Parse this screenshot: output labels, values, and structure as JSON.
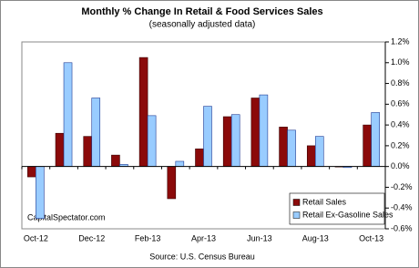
{
  "chart_data": {
    "type": "bar",
    "title": "Monthly % Change In Retail & Food Services Sales",
    "subtitle": "(seasonally adjusted data)",
    "source": "Source: U.S. Census Bureau",
    "watermark": "CapitalSpectator.com",
    "categories": [
      "Oct-12",
      null,
      "Dec-12",
      null,
      "Feb-13",
      null,
      "Apr-13",
      null,
      "Jun-13",
      null,
      "Aug-13",
      null,
      "Oct-13"
    ],
    "series": [
      {
        "name": "Retail Sales",
        "color": "#8b0a0a",
        "values": [
          -0.1,
          0.32,
          0.29,
          0.11,
          1.05,
          -0.31,
          0.17,
          0.48,
          0.66,
          0.38,
          0.2,
          0.0,
          0.4
        ]
      },
      {
        "name": "Retail Ex-Gasoline Sales",
        "color": "#99ccff",
        "values": [
          -0.5,
          1.0,
          0.66,
          0.02,
          0.49,
          0.05,
          0.58,
          0.5,
          0.69,
          0.35,
          0.29,
          -0.01,
          0.52
        ]
      }
    ],
    "ylim": [
      -0.6,
      1.2
    ],
    "yticks": [
      {
        "value": -0.6,
        "label": "-0.6%"
      },
      {
        "value": -0.4,
        "label": "-0.4%"
      },
      {
        "value": -0.2,
        "label": "-0.2%"
      },
      {
        "value": 0,
        "label": "0.0%"
      },
      {
        "value": 0.2,
        "label": "0.2%"
      },
      {
        "value": 0.4,
        "label": "0.4%"
      },
      {
        "value": 0.6,
        "label": "0.6%"
      },
      {
        "value": 0.8,
        "label": "0.8%"
      },
      {
        "value": 1.0,
        "label": "1.0%"
      },
      {
        "value": 1.2,
        "label": "1.2%"
      }
    ],
    "y_axis_side": "right",
    "grid": false,
    "legend": "lower right"
  }
}
